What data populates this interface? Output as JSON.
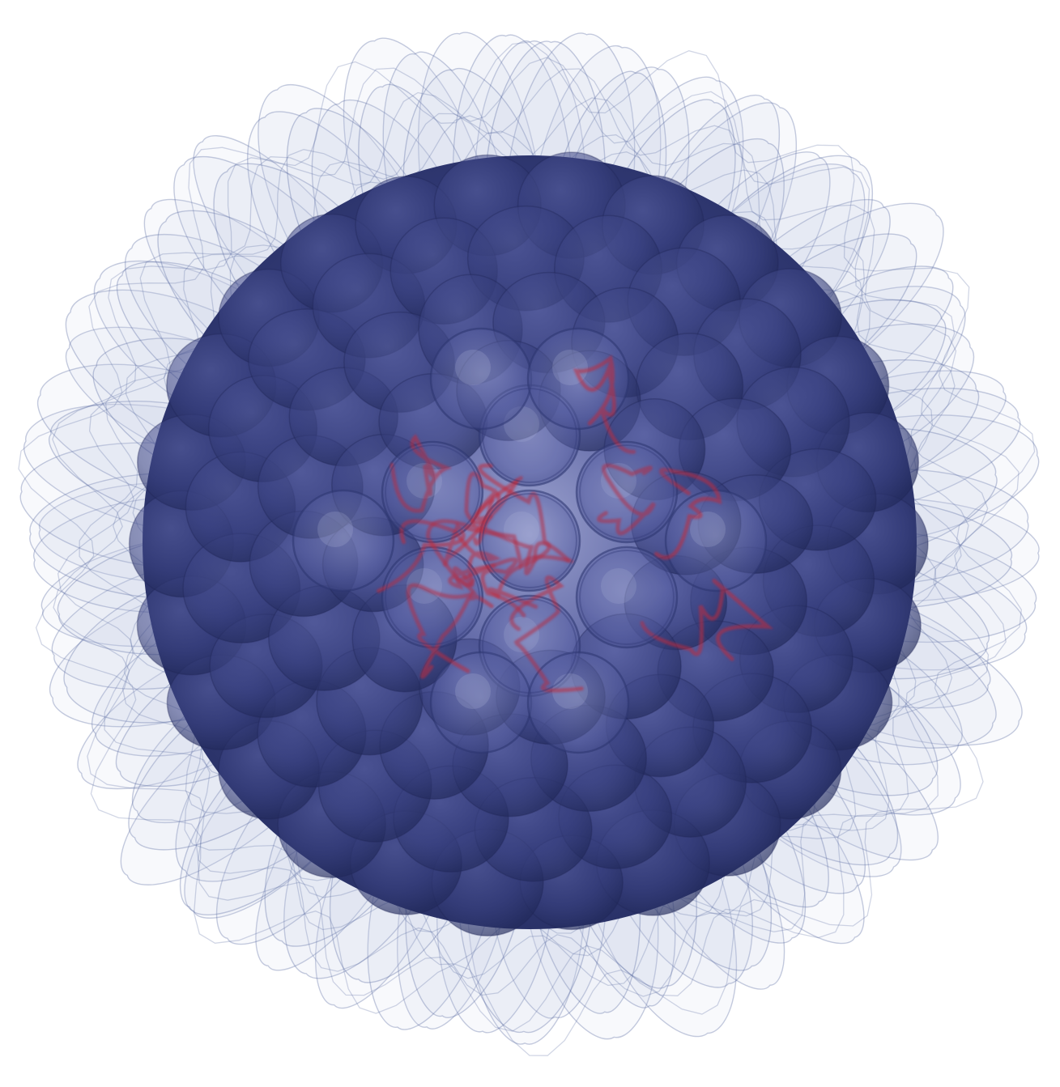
{
  "colors": {
    "background": "#ffffff",
    "capsid_dark": "#2a3268",
    "capsid_mid": "#3d4585",
    "capsid_light": "#6b72b0",
    "spike_stroke": "#5a6aa0",
    "spike_fill": "#c9d0e6",
    "genome_red": "#c0243a"
  },
  "icons": {
    "subject": "virus-particle-icon"
  }
}
